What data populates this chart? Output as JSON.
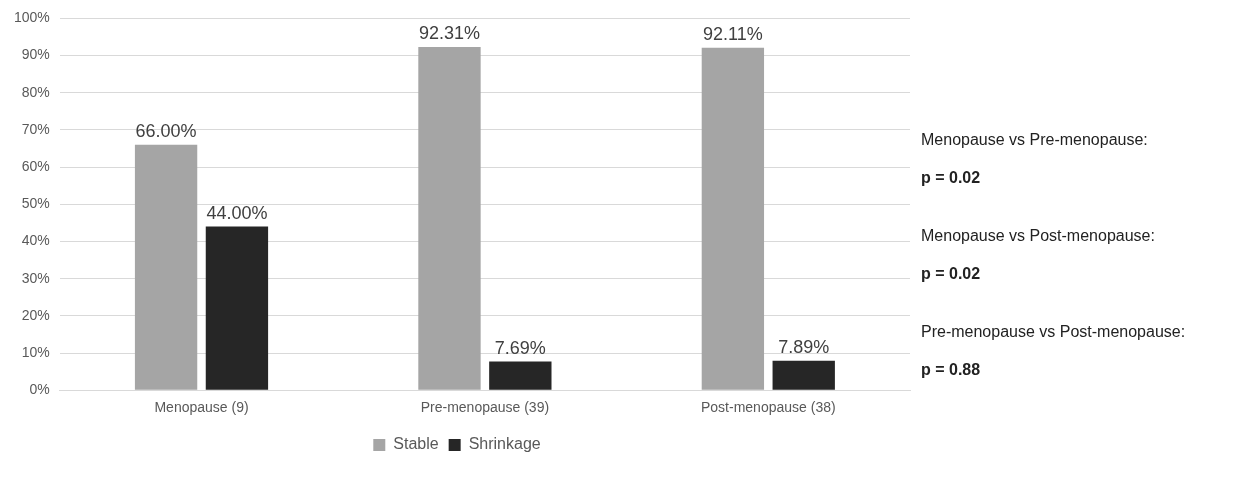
{
  "chart_data": {
    "type": "bar",
    "categories": [
      "Menopause (9)",
      "Pre-menopause (39)",
      "Post-menopause (38)"
    ],
    "series": [
      {
        "name": "Stable",
        "color": "#a5a5a5",
        "values": [
          66.0,
          92.31,
          92.11
        ],
        "value_labels": [
          "66.00%",
          "92.31%",
          "92.11%"
        ]
      },
      {
        "name": "Shrinkage",
        "color": "#262626",
        "values": [
          44.0,
          7.69,
          7.89
        ],
        "value_labels": [
          "44.00%",
          "7.69%",
          "7.89%"
        ]
      }
    ],
    "ylim": [
      0,
      100
    ],
    "yticks": [
      {
        "value": 0,
        "label": "0%"
      },
      {
        "value": 10,
        "label": "10%"
      },
      {
        "value": 20,
        "label": "20%"
      },
      {
        "value": 30,
        "label": "30%"
      },
      {
        "value": 40,
        "label": "40%"
      },
      {
        "value": 50,
        "label": "50%"
      },
      {
        "value": 60,
        "label": "60%"
      },
      {
        "value": 70,
        "label": "70%"
      },
      {
        "value": 80,
        "label": "80%"
      },
      {
        "value": 90,
        "label": "90%"
      },
      {
        "value": 100,
        "label": "100%"
      }
    ],
    "grid": "y",
    "legend": "bottom",
    "annotations": [
      "Menopause vs Pre-menopause:",
      "p = 0.02",
      "Menopause vs Post-menopause:",
      "p = 0.02",
      "Pre-menopause vs Post-menopause:",
      "p = 0.88"
    ]
  }
}
